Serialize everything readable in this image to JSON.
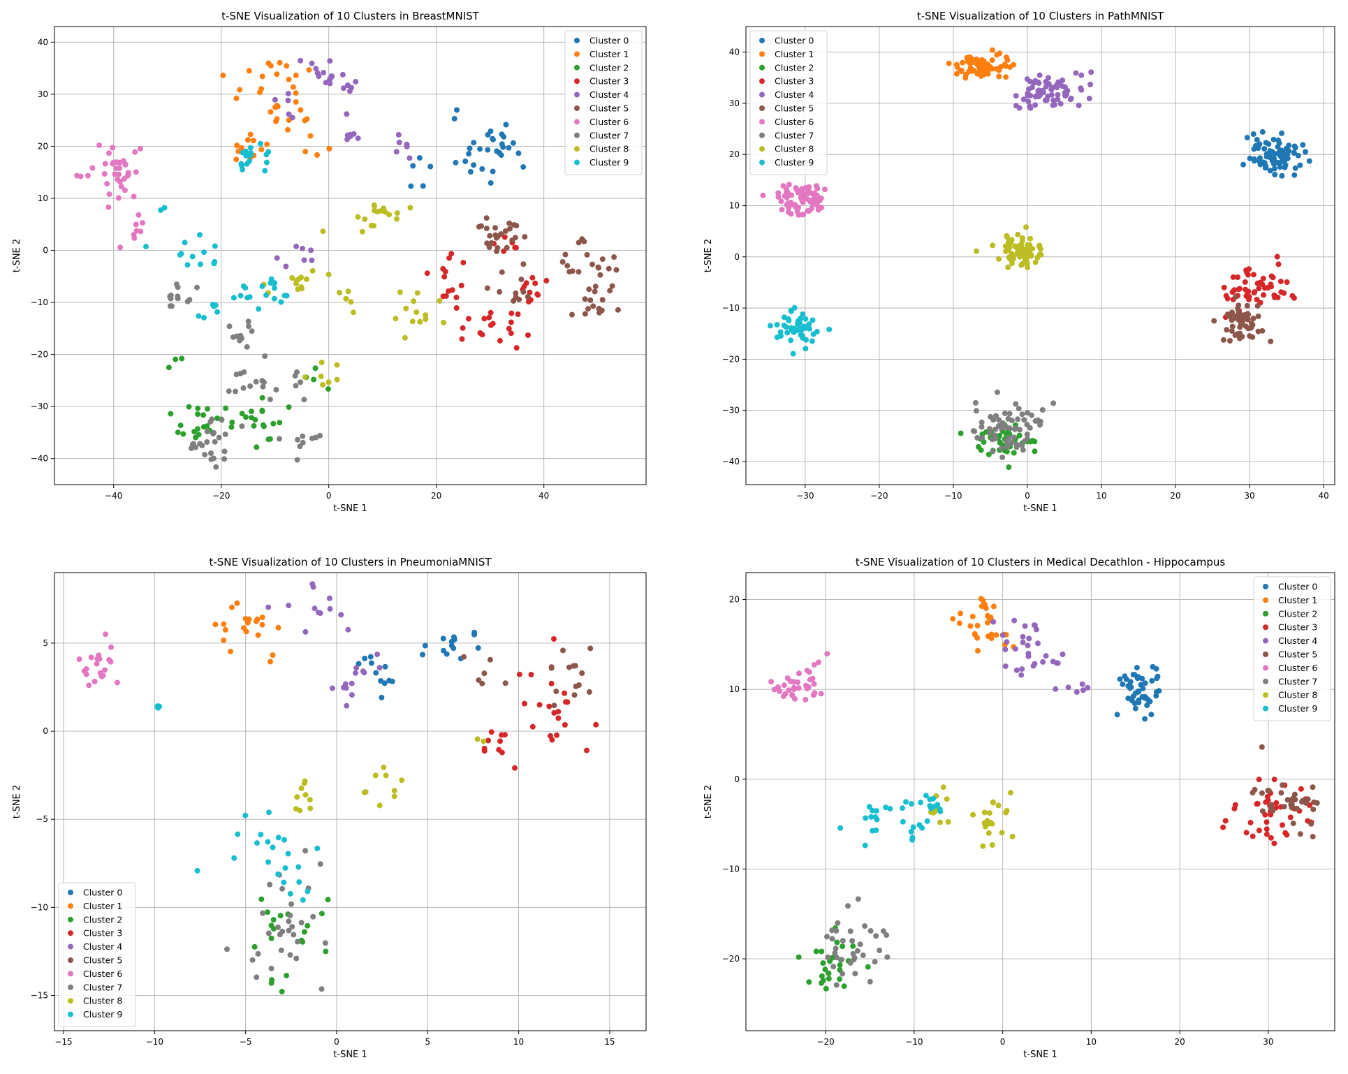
{
  "figure": {
    "cluster_names": [
      "Cluster 0",
      "Cluster 1",
      "Cluster 2",
      "Cluster 3",
      "Cluster 4",
      "Cluster 5",
      "Cluster 6",
      "Cluster 7",
      "Cluster 8",
      "Cluster 9"
    ],
    "palette": [
      "#1f77b4",
      "#ff7f0e",
      "#2ca02c",
      "#d62728",
      "#9467bd",
      "#8c564b",
      "#e377c2",
      "#7f7f7f",
      "#bcbd22",
      "#17becf"
    ]
  },
  "chart_data": [
    {
      "type": "scatter",
      "title": "t-SNE Visualization of 10 Clusters in BreastMNIST",
      "xlabel": "t-SNE 1",
      "ylabel": "t-SNE 2",
      "xlim": [
        -51,
        59
      ],
      "ylim": [
        -45,
        43
      ],
      "xticks": [
        -40,
        -20,
        0,
        20,
        40
      ],
      "yticks": [
        -40,
        -30,
        -20,
        -10,
        0,
        10,
        20,
        30,
        40
      ],
      "grid": true,
      "legend_position": "top-right",
      "point_counts": [
        35,
        45,
        45,
        50,
        45,
        70,
        45,
        75,
        55,
        55
      ],
      "clusters": [
        {
          "label": "Cluster 0",
          "regions": [
            [
              30,
              19,
              7,
              7
            ],
            [
              22,
              25,
              3,
              3
            ],
            [
              17,
              15,
              3,
              3
            ]
          ]
        },
        {
          "label": "Cluster 1",
          "regions": [
            [
              -10,
              32,
              7,
              6
            ],
            [
              -15,
              20,
              3,
              5
            ],
            [
              -2,
              20,
              4,
              3
            ],
            [
              -7,
              27,
              4,
              3
            ]
          ]
        },
        {
          "label": "Cluster 2",
          "regions": [
            [
              -24,
              -35,
              5,
              5
            ],
            [
              -13,
              -32,
              5,
              4
            ],
            [
              -28,
              -22,
              3,
              3
            ],
            [
              -2,
              -25,
              3,
              3
            ]
          ]
        },
        {
          "label": "Cluster 3",
          "regions": [
            [
              30,
              -15,
              6,
              4
            ],
            [
              22,
              -7,
              4,
              5
            ],
            [
              38,
              -7,
              4,
              4
            ],
            [
              33,
              1,
              4,
              3
            ]
          ]
        },
        {
          "label": "Cluster 4",
          "regions": [
            [
              0,
              34,
              6,
              4
            ],
            [
              -8,
              28,
              3,
              3
            ],
            [
              4,
              22,
              4,
              3
            ],
            [
              14,
              20,
              3,
              2
            ],
            [
              -5,
              0,
              3,
              3
            ]
          ]
        },
        {
          "label": "Cluster 5",
          "regions": [
            [
              48,
              -2,
              5,
              5
            ],
            [
              36,
              -8,
              5,
              4
            ],
            [
              32,
              4,
              5,
              5
            ],
            [
              49,
              -10,
              5,
              3
            ]
          ]
        },
        {
          "label": "Cluster 6",
          "regions": [
            [
              -39,
              15,
              6,
              6
            ],
            [
              -36,
              4,
              3,
              3
            ]
          ]
        },
        {
          "label": "Cluster 7",
          "regions": [
            [
              -22,
              -36,
              5,
              5
            ],
            [
              -5,
              -37,
              4,
              3
            ],
            [
              -12,
              -26,
              8,
              3
            ],
            [
              -15,
              -17,
              4,
              3
            ],
            [
              -28,
              -8,
              3,
              4
            ]
          ]
        },
        {
          "label": "Cluster 8",
          "regions": [
            [
              6,
              6,
              5,
              4
            ],
            [
              16,
              -12,
              5,
              4
            ],
            [
              -6,
              -6,
              7,
              3
            ],
            [
              3,
              -9,
              3,
              3
            ],
            [
              0,
              -25,
              3,
              4
            ],
            [
              12,
              8,
              4,
              3
            ]
          ]
        },
        {
          "label": "Cluster 9",
          "regions": [
            [
              -25,
              0,
              6,
              4
            ],
            [
              -13,
              -8,
              5,
              4
            ],
            [
              -22,
              -12,
              4,
              3
            ],
            [
              -15,
              18,
              4,
              3
            ],
            [
              -31,
              8,
              2,
              2
            ]
          ]
        }
      ]
    },
    {
      "type": "scatter",
      "title": "t-SNE Visualization of 10 Clusters in PathMNIST",
      "xlabel": "t-SNE 1",
      "ylabel": "t-SNE 2",
      "xlim": [
        -38,
        41.5
      ],
      "ylim": [
        -44.5,
        45
      ],
      "xticks": [
        -30,
        -20,
        -10,
        0,
        10,
        20,
        30,
        40
      ],
      "yticks": [
        -40,
        -30,
        -20,
        -10,
        0,
        10,
        20,
        30,
        40
      ],
      "grid": true,
      "legend_position": "top-left",
      "point_counts": [
        80,
        65,
        45,
        55,
        70,
        50,
        70,
        65,
        65,
        50
      ],
      "clusters": [
        {
          "label": "Cluster 0",
          "regions": [
            [
              34,
              20,
              4,
              3.5
            ]
          ]
        },
        {
          "label": "Cluster 1",
          "regions": [
            [
              -6.5,
              37,
              4,
              3
            ]
          ]
        },
        {
          "label": "Cluster 2",
          "regions": [
            [
              -3,
              -36,
              4,
              4
            ]
          ]
        },
        {
          "label": "Cluster 3",
          "regions": [
            [
              31,
              -6,
              5,
              4
            ]
          ]
        },
        {
          "label": "Cluster 4",
          "regions": [
            [
              3,
              32,
              5,
              4
            ]
          ]
        },
        {
          "label": "Cluster 5",
          "regions": [
            [
              29,
              -13,
              3,
              4
            ]
          ]
        },
        {
          "label": "Cluster 6",
          "regions": [
            [
              -30,
              11,
              4,
              3
            ]
          ]
        },
        {
          "label": "Cluster 7",
          "regions": [
            [
              -3,
              -33,
              5,
              5
            ]
          ]
        },
        {
          "label": "Cluster 8",
          "regions": [
            [
              -1,
              1,
              3.5,
              3
            ]
          ]
        },
        {
          "label": "Cluster 9",
          "regions": [
            [
              -31,
              -14,
              3.5,
              3.5
            ]
          ]
        }
      ]
    },
    {
      "type": "scatter",
      "title": "t-SNE Visualization of 10 Clusters in PneumoniaMNIST",
      "xlabel": "t-SNE 1",
      "ylabel": "t-SNE 2",
      "xlim": [
        -15.5,
        17
      ],
      "ylim": [
        -17,
        9
      ],
      "xticks": [
        -15,
        -10,
        -5,
        0,
        5,
        10,
        15
      ],
      "yticks": [
        -15,
        -10,
        -5,
        0,
        5
      ],
      "grid": true,
      "legend_position": "bottom-left",
      "point_counts": [
        25,
        20,
        20,
        30,
        25,
        20,
        20,
        30,
        20,
        25
      ],
      "clusters": [
        {
          "label": "Cluster 0",
          "regions": [
            [
              6,
              5,
              2,
              1.5
            ],
            [
              2,
              3,
              1.5,
              1.5
            ]
          ]
        },
        {
          "label": "Cluster 1",
          "regions": [
            [
              -5,
              5.5,
              2.5,
              2
            ]
          ]
        },
        {
          "label": "Cluster 2",
          "regions": [
            [
              -2.5,
              -12,
              2,
              3
            ]
          ]
        },
        {
          "label": "Cluster 3",
          "regions": [
            [
              12,
              1.5,
              3,
              2.5
            ],
            [
              9,
              -0.5,
              2,
              1
            ]
          ]
        },
        {
          "label": "Cluster 4",
          "regions": [
            [
              -1.5,
              6.5,
              2,
              1.5
            ],
            [
              1,
              3,
              1.5,
              2
            ]
          ]
        },
        {
          "label": "Cluster 5",
          "regions": [
            [
              13,
              3,
              2,
              2
            ],
            [
              8,
              3,
              1,
              1.5
            ]
          ]
        },
        {
          "label": "Cluster 6",
          "regions": [
            [
              -13,
              3.5,
              1.5,
              1.5
            ]
          ]
        },
        {
          "label": "Cluster 7",
          "regions": [
            [
              -3,
              -11,
              2.5,
              4
            ]
          ]
        },
        {
          "label": "Cluster 8",
          "regions": [
            [
              2.5,
              -3,
              1.5,
              2
            ],
            [
              -2,
              -3,
              1,
              2
            ],
            [
              8,
              -0.8,
              0.5,
              0.5
            ]
          ]
        },
        {
          "label": "Cluster 9",
          "regions": [
            [
              -4,
              -6,
              2.5,
              2
            ],
            [
              -2,
              -9,
              1.5,
              1.5
            ],
            [
              -10,
              1.3,
              0.8,
              0.6
            ]
          ]
        }
      ]
    },
    {
      "type": "scatter",
      "title": "t-SNE Visualization of 10 Clusters in Medical Decathlon - Hippocampus",
      "xlabel": "t-SNE 1",
      "ylabel": "t-SNE 2",
      "xlim": [
        -29,
        37.5
      ],
      "ylim": [
        -28,
        23
      ],
      "xticks": [
        -20,
        -10,
        0,
        10,
        20,
        30
      ],
      "yticks": [
        -20,
        -10,
        0,
        10,
        20
      ],
      "grid": true,
      "legend_position": "top-right",
      "point_counts": [
        45,
        30,
        25,
        40,
        35,
        35,
        35,
        35,
        30,
        35
      ],
      "clusters": [
        {
          "label": "Cluster 0",
          "regions": [
            [
              16,
              10,
              3,
              3
            ]
          ]
        },
        {
          "label": "Cluster 1",
          "regions": [
            [
              -2,
              17,
              3,
              3
            ]
          ]
        },
        {
          "label": "Cluster 2",
          "regions": [
            [
              -19,
              -21,
              3,
              4
            ]
          ]
        },
        {
          "label": "Cluster 3",
          "regions": [
            [
              30,
              -4,
              5,
              3
            ]
          ]
        },
        {
          "label": "Cluster 4",
          "regions": [
            [
              3,
              15,
              4,
              5
            ],
            [
              9,
              10,
              2,
              1.5
            ]
          ]
        },
        {
          "label": "Cluster 5",
          "regions": [
            [
              32,
              -3,
              4,
              4
            ]
          ]
        },
        {
          "label": "Cluster 6",
          "regions": [
            [
              -23,
              10.5,
              3,
              2.5
            ]
          ]
        },
        {
          "label": "Cluster 7",
          "regions": [
            [
              -17,
              -19,
              4,
              4
            ]
          ]
        },
        {
          "label": "Cluster 8",
          "regions": [
            [
              -1,
              -5,
              2,
              3
            ],
            [
              -7,
              -3,
              1.5,
              2.5
            ]
          ]
        },
        {
          "label": "Cluster 9",
          "regions": [
            [
              -13,
              -4,
              4,
              2.5
            ],
            [
              -8,
              -3.5,
              2,
              2
            ]
          ]
        }
      ]
    }
  ]
}
